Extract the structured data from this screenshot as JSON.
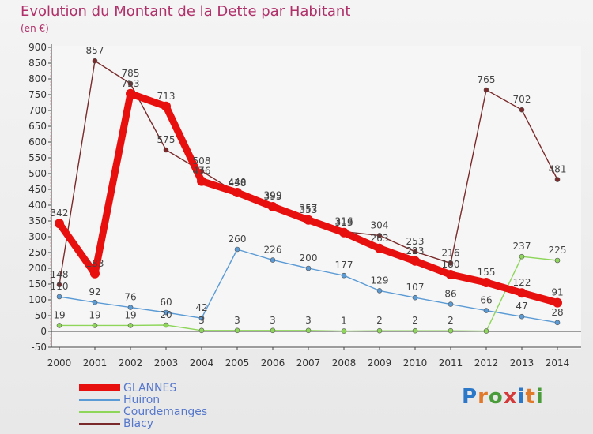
{
  "header": {
    "title": "Evolution du Montant de la Dette par Habitant",
    "unit_label": "(en €)"
  },
  "logo": {
    "text": "Proxiti",
    "colors": [
      "#2b77c8",
      "#e07a2a",
      "#4a9c3a",
      "#d43a3a",
      "#2b77c8",
      "#e07a2a",
      "#4a9c3a"
    ]
  },
  "chart_data": {
    "type": "line",
    "title": "Evolution du Montant de la Dette par Habitant",
    "subtitle": "(en €)",
    "xlabel": "",
    "ylabel": "",
    "x": [
      "2000",
      "2001",
      "2002",
      "2003",
      "2004",
      "2005",
      "2006",
      "2007",
      "2008",
      "2009",
      "2010",
      "2011",
      "2012",
      "2013",
      "2014"
    ],
    "y_ticks": [
      -50,
      0,
      50,
      100,
      150,
      200,
      250,
      300,
      350,
      400,
      450,
      500,
      550,
      600,
      650,
      700,
      750,
      800,
      850,
      900
    ],
    "ylim": [
      -50,
      900
    ],
    "grid": false,
    "legend_position": "bottom-left",
    "series": [
      {
        "name": "GLANNES",
        "color": "#e8100f",
        "values": [
          342,
          183,
          753,
          713,
          476,
          440,
          395,
          353,
          313,
          263,
          223,
          180,
          155,
          122,
          91
        ]
      },
      {
        "name": "Huiron",
        "color": "#5b9bd5",
        "values": [
          110,
          92,
          76,
          60,
          42,
          260,
          226,
          200,
          177,
          129,
          107,
          86,
          66,
          47,
          28
        ]
      },
      {
        "name": "Courdemanges",
        "color": "#8ed65a",
        "values": [
          19,
          19,
          19,
          20,
          3,
          3,
          3,
          3,
          1,
          2,
          2,
          2,
          1,
          237,
          225
        ]
      },
      {
        "name": "Blacy",
        "color": "#7a2a2a",
        "values": [
          148,
          857,
          785,
          575,
          508,
          438,
          399,
          357,
          316,
          304,
          253,
          216,
          765,
          702,
          481
        ]
      }
    ],
    "data_labels": {
      "GLANNES": [
        "342",
        "183",
        "753",
        "713",
        "476",
        "440",
        "395",
        "353",
        "313",
        "263",
        "223",
        "180",
        "155",
        "122",
        "91"
      ],
      "Huiron": [
        "110",
        "92",
        "76",
        "60",
        "42",
        "260",
        "226",
        "200",
        "177",
        "129",
        "107",
        "86",
        "66",
        "47",
        "28"
      ],
      "Courdemanges": [
        "19",
        "19",
        "19",
        "20",
        "3",
        "3",
        "3",
        "3",
        "1",
        "2",
        "2",
        "2",
        "",
        "237",
        "225"
      ],
      "Blacy": [
        "148",
        "857",
        "785",
        "575",
        "508",
        "438",
        "399",
        "357",
        "316",
        "304",
        "253",
        "216",
        "765",
        "702",
        "481"
      ]
    }
  }
}
